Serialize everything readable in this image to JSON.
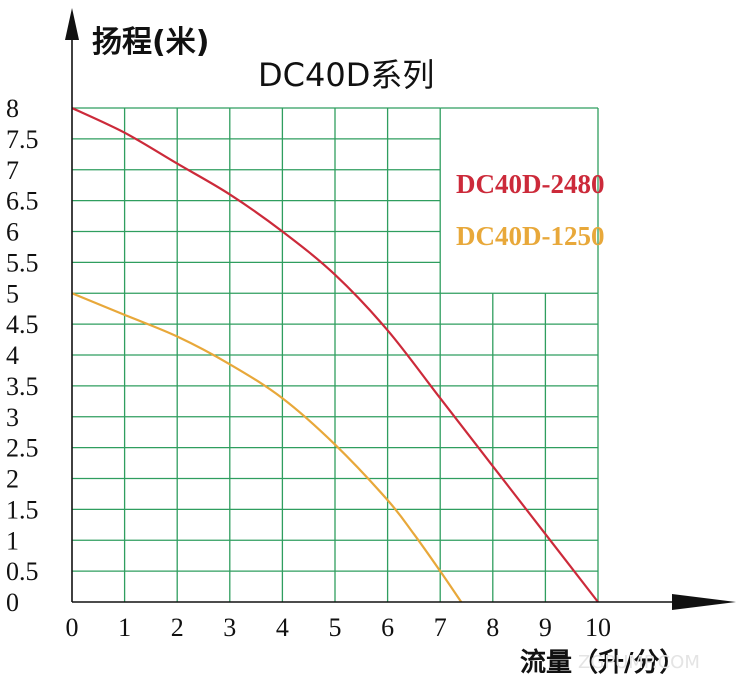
{
  "chart_data": {
    "type": "line",
    "title": "DC40D系列",
    "ylabel": "扬程(米)",
    "xlabel": "流量（升/分）",
    "xlim": [
      0,
      10
    ],
    "ylim": [
      0,
      8
    ],
    "x_ticks": [
      "0",
      "1",
      "2",
      "3",
      "4",
      "5",
      "6",
      "7",
      "8",
      "9",
      "10"
    ],
    "y_ticks": [
      "0",
      "0.5",
      "1",
      "1.5",
      "2",
      "2.5",
      "3",
      "3.5",
      "4",
      "4.5",
      "5",
      "5.5",
      "6",
      "6.5",
      "7",
      "7.5",
      "8"
    ],
    "grid": true,
    "legend_position": "top-right",
    "grid_color": "#2f9e5f",
    "series": [
      {
        "name": "DC40D-2480",
        "color": "#cc2a3a",
        "x": [
          0,
          1,
          2,
          3,
          4,
          5,
          6,
          7,
          8,
          9,
          10
        ],
        "y": [
          8,
          7.6,
          7.1,
          6.6,
          6.0,
          5.3,
          4.4,
          3.3,
          2.2,
          1.1,
          0
        ]
      },
      {
        "name": "DC40D-1250",
        "color": "#e8a83a",
        "x": [
          0,
          1,
          2,
          3,
          4,
          5,
          6,
          6.5,
          7,
          7.4
        ],
        "y": [
          5,
          4.65,
          4.3,
          3.85,
          3.3,
          2.55,
          1.65,
          1.1,
          0.5,
          0
        ]
      }
    ]
  },
  "watermark": "ZGPUMP.COM"
}
